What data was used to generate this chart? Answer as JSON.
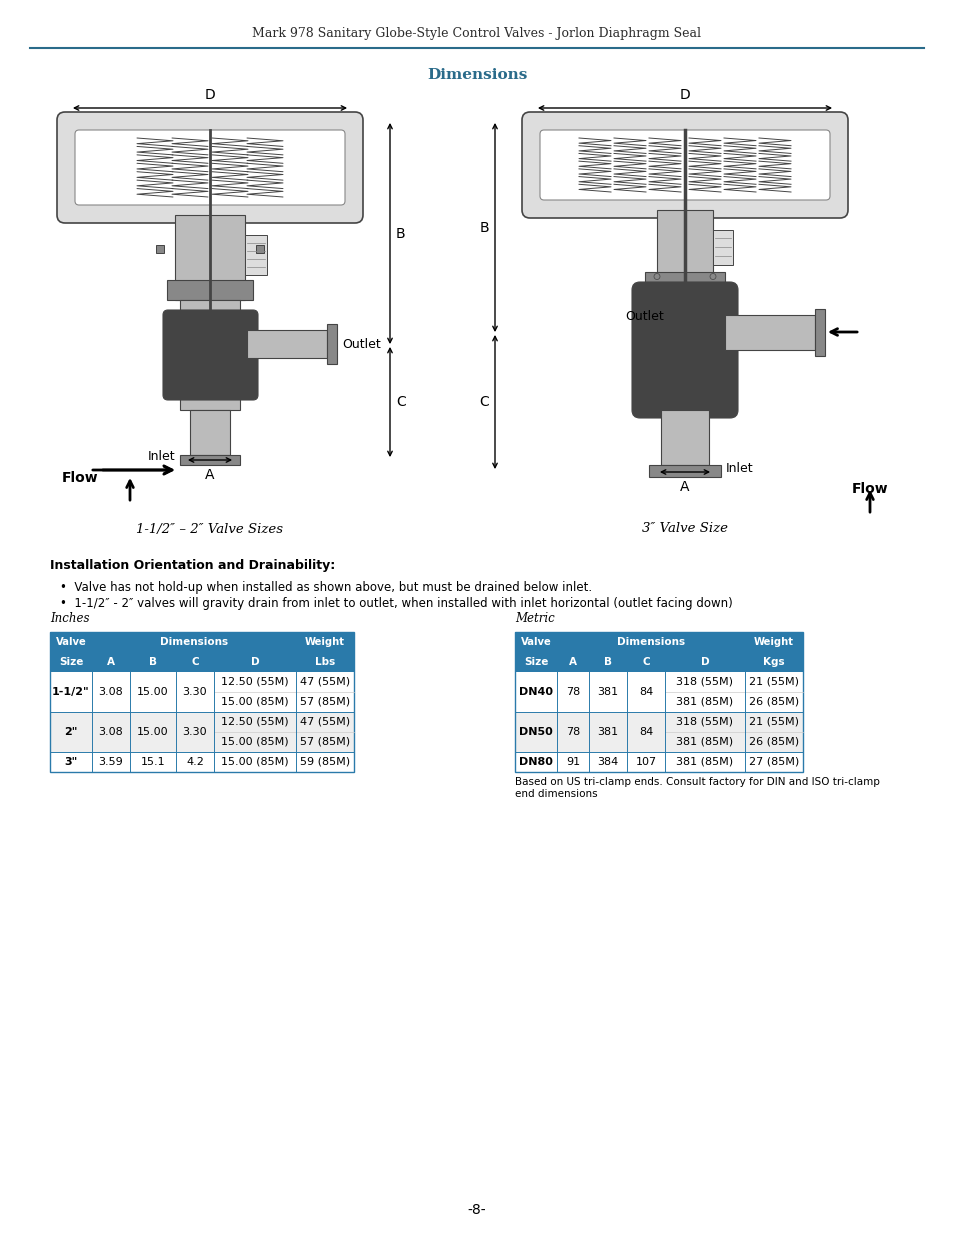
{
  "page_title": "Mark 978 Sanitary Globe-Style Control Valves - Jorlon Diaphragm Seal",
  "title_color": "#2c2c2c",
  "header_line_color": "#2a6b8a",
  "dimensions_heading": "Dimensions",
  "dimensions_heading_color": "#2a6b8a",
  "valve_label_left": "1-1/2″ – 2″ Valve Sizes",
  "valve_label_right": "3″ Valve Size",
  "install_heading": "Installation Orientation and Drainability:",
  "install_bullet1": "Valve has not hold-up when installed as shown above, but must be drained below inlet.",
  "install_bullet2": "1-1/2″ - 2″ valves will gravity drain from inlet to outlet, when installed with inlet horizontal (outlet facing down)",
  "inches_label": "Inches",
  "metric_label": "Metric",
  "table_header_color": "#2a7aaa",
  "table_header_text_color": "#ffffff",
  "table_border_color": "#2a7aaa",
  "inches_col_headers": [
    "Valve\nSize",
    "A",
    "B",
    "C",
    "D",
    "Weight\nLbs"
  ],
  "inches_rows": [
    [
      "1-1/2\"",
      "3.08",
      "15.00",
      "3.30",
      "12.50 (55M)",
      "47 (55M)"
    ],
    [
      "",
      "",
      "",
      "",
      "15.00 (85M)",
      "57 (85M)"
    ],
    [
      "2\"",
      "3.08",
      "15.00",
      "3.30",
      "12.50 (55M)",
      "47 (55M)"
    ],
    [
      "",
      "",
      "",
      "",
      "15.00 (85M)",
      "57 (85M)"
    ],
    [
      "3\"",
      "3.59",
      "15.1",
      "4.2",
      "15.00 (85M)",
      "59 (85M)"
    ]
  ],
  "metric_col_headers": [
    "Valve\nSize",
    "A",
    "B",
    "C",
    "D",
    "Weight\nKgs"
  ],
  "metric_rows": [
    [
      "DN40",
      "78",
      "381",
      "84",
      "318 (55M)",
      "21 (55M)"
    ],
    [
      "",
      "",
      "",
      "",
      "381 (85M)",
      "26 (85M)"
    ],
    [
      "DN50",
      "78",
      "381",
      "84",
      "318 (55M)",
      "21 (55M)"
    ],
    [
      "",
      "",
      "",
      "",
      "381 (85M)",
      "26 (85M)"
    ],
    [
      "DN80",
      "91",
      "384",
      "107",
      "381 (85M)",
      "27 (85M)"
    ]
  ],
  "footnote": "Based on US tri-clamp ends. Consult factory for DIN and ISO tri-clamp\nend dimensions",
  "page_number": "-8-",
  "bg_color": "#ffffff"
}
